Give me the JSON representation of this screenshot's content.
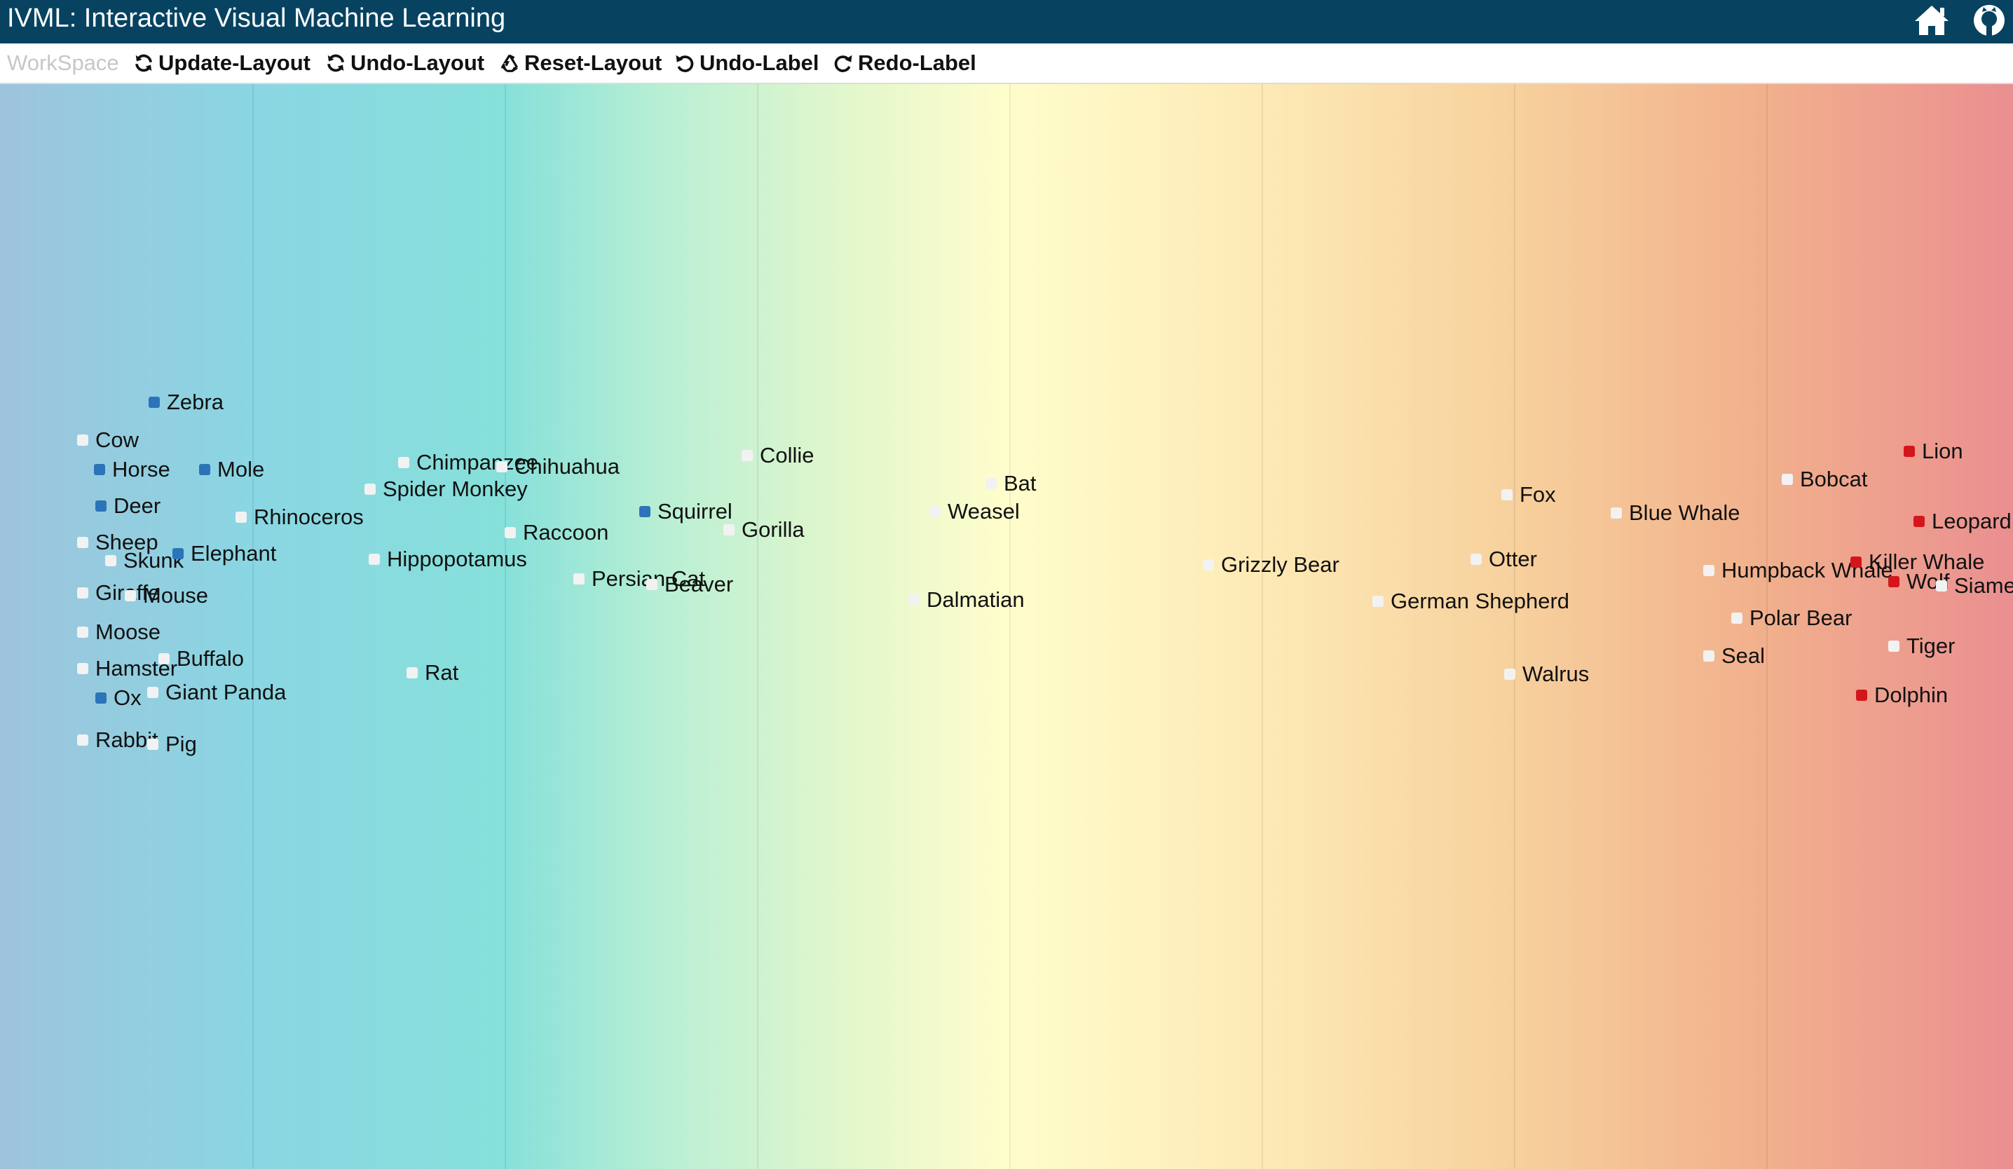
{
  "header": {
    "title": "IVML: Interactive Visual Machine Learning",
    "icons": [
      "home-icon",
      "github-icon"
    ]
  },
  "toolbar": {
    "workspace_label": "WorkSpace",
    "buttons": [
      {
        "label": "Update-Layout",
        "icon": "refresh-icon"
      },
      {
        "label": "Undo-Layout",
        "icon": "refresh-icon"
      },
      {
        "label": "Reset-Layout",
        "icon": "recycle-icon"
      },
      {
        "label": "Undo-Label",
        "icon": "undo-icon"
      },
      {
        "label": "Redo-Label",
        "icon": "redo-icon"
      }
    ]
  },
  "colors": {
    "header_bg": "#074361",
    "label_blue": "#2b74b8",
    "label_red": "#d3161c",
    "unlabeled": "#f2f2f2",
    "gradient_start": "#9dc4dc",
    "gradient_end": "#ea8f90"
  },
  "points": [
    {
      "name": "Zebra",
      "label": "blue"
    },
    {
      "name": "Cow",
      "label": "none"
    },
    {
      "name": "Horse",
      "label": "blue"
    },
    {
      "name": "Mole",
      "label": "blue"
    },
    {
      "name": "Deer",
      "label": "blue"
    },
    {
      "name": "Rhinoceros",
      "label": "none"
    },
    {
      "name": "Sheep",
      "label": "none"
    },
    {
      "name": "Skunk",
      "label": "none"
    },
    {
      "name": "Elephant",
      "label": "blue"
    },
    {
      "name": "Giraffe",
      "label": "none"
    },
    {
      "name": "Mouse",
      "label": "none"
    },
    {
      "name": "Moose",
      "label": "none"
    },
    {
      "name": "Buffalo",
      "label": "none"
    },
    {
      "name": "Hamster",
      "label": "none"
    },
    {
      "name": "Ox",
      "label": "blue"
    },
    {
      "name": "Giant Panda",
      "label": "none"
    },
    {
      "name": "Rabbit",
      "label": "none"
    },
    {
      "name": "Pig",
      "label": "none"
    },
    {
      "name": "Chimpanzee",
      "label": "none"
    },
    {
      "name": "Chihuahua",
      "label": "none"
    },
    {
      "name": "Spider Monkey",
      "label": "none"
    },
    {
      "name": "Hippopotamus",
      "label": "none"
    },
    {
      "name": "Raccoon",
      "label": "none"
    },
    {
      "name": "Rat",
      "label": "none"
    },
    {
      "name": "Squirrel",
      "label": "blue"
    },
    {
      "name": "Persian Cat",
      "label": "none"
    },
    {
      "name": "Beaver",
      "label": "none"
    },
    {
      "name": "Collie",
      "label": "none"
    },
    {
      "name": "Gorilla",
      "label": "none"
    },
    {
      "name": "Bat",
      "label": "none"
    },
    {
      "name": "Weasel",
      "label": "none"
    },
    {
      "name": "Dalmatian",
      "label": "none"
    },
    {
      "name": "Grizzly Bear",
      "label": "none"
    },
    {
      "name": "Fox",
      "label": "none"
    },
    {
      "name": "Otter",
      "label": "none"
    },
    {
      "name": "German Shepherd",
      "label": "none"
    },
    {
      "name": "Walrus",
      "label": "none"
    },
    {
      "name": "Blue Whale",
      "label": "none"
    },
    {
      "name": "Bobcat",
      "label": "none"
    },
    {
      "name": "Humpback Whale",
      "label": "none"
    },
    {
      "name": "Polar Bear",
      "label": "none"
    },
    {
      "name": "Seal",
      "label": "none"
    },
    {
      "name": "Lion",
      "label": "red"
    },
    {
      "name": "Leopard",
      "label": "red"
    },
    {
      "name": "Killer Whale",
      "label": "red"
    },
    {
      "name": "Wolf",
      "label": "red"
    },
    {
      "name": "Siamese Cat",
      "label": "none"
    },
    {
      "name": "Tiger",
      "label": "none"
    },
    {
      "name": "Dolphin",
      "label": "red"
    }
  ]
}
